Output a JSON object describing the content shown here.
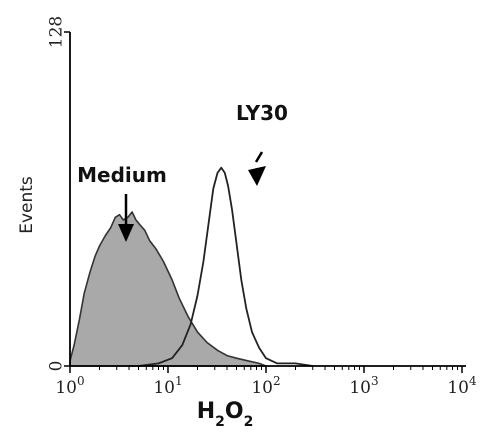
{
  "chart_data": {
    "type": "area",
    "title": "",
    "xlabel": "H2O2",
    "ylabel": "Events",
    "x_scale": "log",
    "xlim": [
      1,
      10000
    ],
    "ylim": [
      0,
      128
    ],
    "x_ticks": [
      "10^0",
      "10^1",
      "10^2",
      "10^3",
      "10^4"
    ],
    "y_ticks": [
      "0",
      "128"
    ],
    "grid": false,
    "series": [
      {
        "name": "Medium",
        "style": "filled-gray",
        "color": "#a9a9a9",
        "x": [
          1.0,
          1.1,
          1.25,
          1.4,
          1.6,
          1.8,
          2.0,
          2.3,
          2.6,
          2.9,
          3.2,
          3.5,
          3.9,
          4.3,
          4.7,
          5.2,
          5.8,
          6.5,
          7.5,
          9.0,
          11,
          13,
          16,
          20,
          25,
          32,
          40,
          50,
          65,
          85,
          100
        ],
        "y": [
          2,
          8,
          18,
          28,
          36,
          42,
          46,
          50,
          53,
          57,
          58,
          56,
          57,
          59,
          56,
          54,
          52,
          48,
          45,
          40,
          33,
          26,
          19,
          13,
          9,
          6,
          4,
          3,
          2,
          1,
          0
        ]
      },
      {
        "name": "LY30",
        "style": "outline",
        "color": "#222222",
        "x": [
          5,
          8,
          11,
          14,
          17,
          20,
          23,
          26,
          29,
          32,
          35,
          38,
          41,
          45,
          50,
          56,
          63,
          72,
          85,
          100,
          130,
          200,
          300
        ],
        "y": [
          0,
          1,
          3,
          8,
          16,
          27,
          40,
          55,
          68,
          74,
          76,
          74,
          69,
          60,
          47,
          33,
          22,
          13,
          7,
          3,
          1,
          1,
          0
        ]
      }
    ],
    "annotations": [
      {
        "text": "Medium",
        "points_to": "Medium"
      },
      {
        "text": "LY30",
        "points_to": "LY30"
      }
    ]
  }
}
